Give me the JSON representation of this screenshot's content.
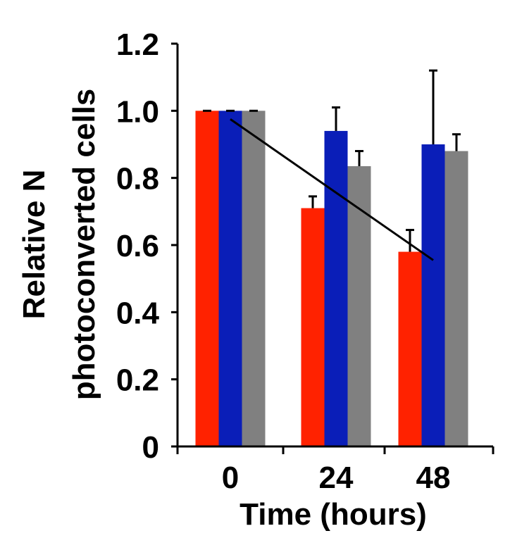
{
  "chart_data": {
    "type": "bar",
    "categories": [
      "0",
      "24",
      "48"
    ],
    "series": [
      {
        "color": "#ff2200",
        "values": [
          1.0,
          0.71,
          0.58
        ],
        "errors": [
          0.0,
          0.035,
          0.065
        ]
      },
      {
        "color": "#0a1eb8",
        "values": [
          1.0,
          0.94,
          0.9
        ],
        "errors": [
          0.0,
          0.07,
          0.22
        ]
      },
      {
        "color": "#808080",
        "values": [
          1.0,
          0.835,
          0.88
        ],
        "errors": [
          0.0,
          0.045,
          0.05
        ]
      }
    ],
    "trendline": {
      "from": [
        0,
        0.975
      ],
      "to": [
        2,
        0.555
      ]
    },
    "xlabel": "Time (hours)",
    "ylabel_line1": "Relative N",
    "ylabel_line2": "photoconverted cells",
    "ylim": [
      0,
      1.2
    ],
    "yticks": [
      "0",
      "0.2",
      "0.4",
      "0.6",
      "0.8",
      "1.0",
      "1.2"
    ],
    "grid": false,
    "legend": "none"
  }
}
